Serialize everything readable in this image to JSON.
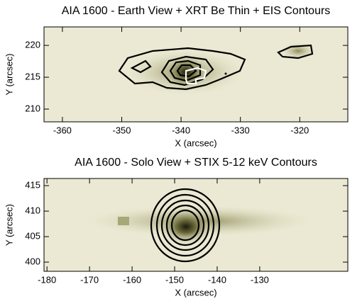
{
  "chart_data": [
    {
      "type": "image",
      "title": "AIA 1600 - Earth View + XRT Be Thin + EIS Contours",
      "xlabel": "X (arcsec)",
      "ylabel": "Y (arcsec)",
      "xlim": [
        -363.1,
        -311.9
      ],
      "ylim": [
        208,
        222.9
      ],
      "xticks": [
        -360,
        -350,
        -340,
        -330,
        -320
      ],
      "yticks": [
        210,
        215,
        220
      ]
    },
    {
      "type": "image",
      "title": "AIA 1600 - Solo View + STIX 5-12 keV Contours",
      "xlabel": "X (arcsec)",
      "ylabel": "Y (arcsec)",
      "xlim": [
        -180.7,
        -109.3
      ],
      "ylim": [
        398.2,
        416.4
      ],
      "xticks": [
        -180,
        -170,
        -160,
        -150,
        -140,
        -130
      ],
      "yticks": [
        400,
        405,
        410,
        415
      ]
    }
  ]
}
